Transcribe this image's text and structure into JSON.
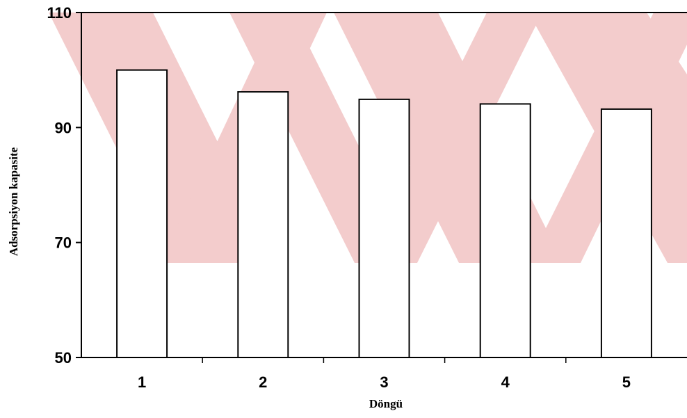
{
  "chart_data": {
    "type": "bar",
    "categories": [
      "1",
      "2",
      "3",
      "4",
      "5"
    ],
    "values": [
      100,
      96.2,
      94.9,
      94.1,
      93.2
    ],
    "xlabel": "Döngü",
    "ylabel": "Adsorpsiyon kapasite",
    "ylim": [
      50,
      110
    ],
    "yticks": [
      "50",
      "70",
      "90",
      "110"
    ],
    "grid": false,
    "legend": "none",
    "bar_fill": "#ffffff",
    "bar_stroke": "#000000"
  },
  "watermark": {
    "color": "#f2c7c7"
  }
}
